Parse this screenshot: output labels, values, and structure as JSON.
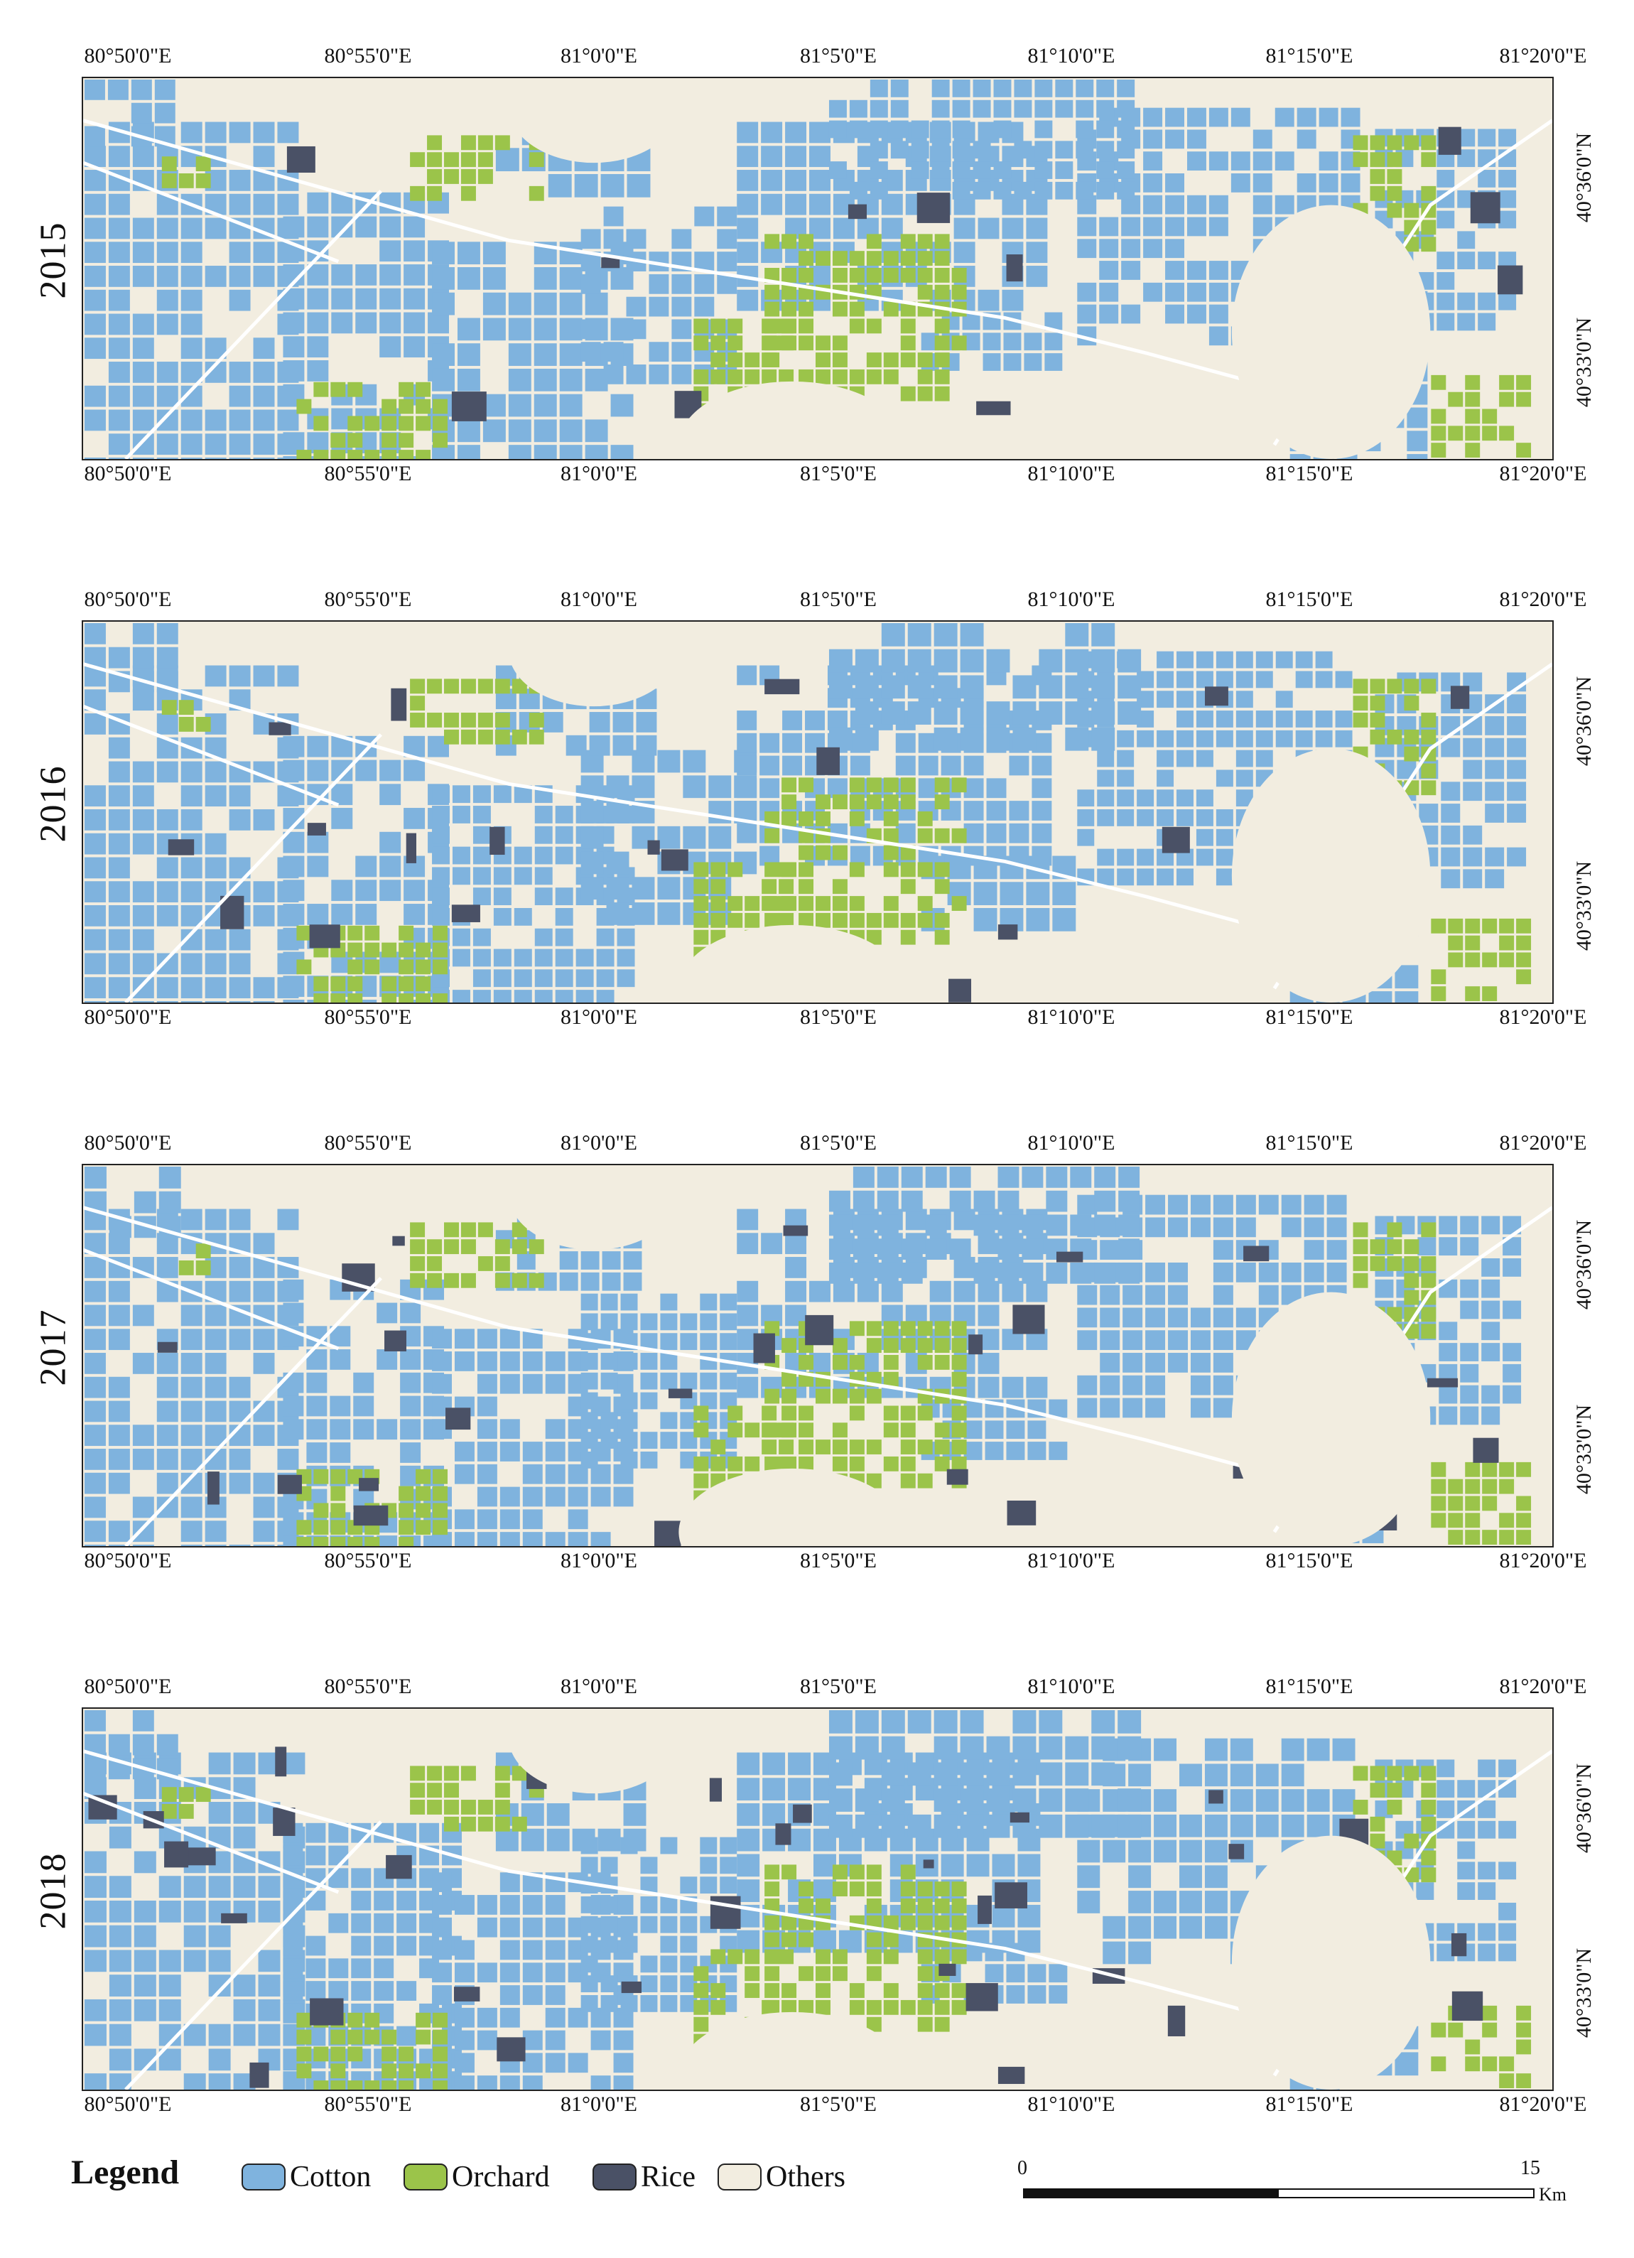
{
  "lon_ticks": [
    "80°50'0\"E",
    "80°55'0\"E",
    "81°0'0\"E",
    "81°5'0\"E",
    "81°10'0\"E",
    "81°15'0\"E",
    "81°20'0\"E"
  ],
  "lat_ticks": [
    "40°36'0\"N",
    "40°33'0\"N"
  ],
  "panels": [
    {
      "year": "2015"
    },
    {
      "year": "2016"
    },
    {
      "year": "2017"
    },
    {
      "year": "2018"
    }
  ],
  "legend": {
    "title": "Legend",
    "items": [
      {
        "label": "Cotton",
        "color": "#7fb3de"
      },
      {
        "label": "Orchard",
        "color": "#9bc44a"
      },
      {
        "label": "Rice",
        "color": "#4a5166"
      },
      {
        "label": "Others",
        "color": "#f2ede0"
      }
    ]
  },
  "scale": {
    "start": "0",
    "end": "15",
    "unit": "Km"
  }
}
